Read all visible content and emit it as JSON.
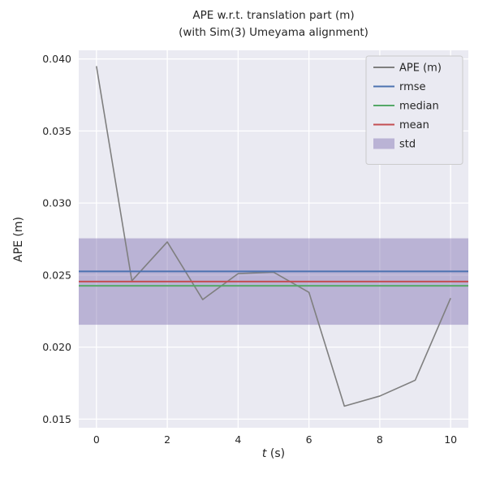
{
  "title": {
    "line1": "APE w.r.t. translation part (m)",
    "line2": "(with Sim(3) Umeyama alignment)"
  },
  "chart_data": {
    "type": "line",
    "title": "APE w.r.t. translation part (m)\n(with Sim(3) Umeyama alignment)",
    "xlabel": "t (s)",
    "ylabel": "APE (m)",
    "xlim": [
      -0.5,
      10.5
    ],
    "ylim": [
      0.0144,
      0.0406
    ],
    "xticks": [
      0,
      2,
      4,
      6,
      8,
      10
    ],
    "yticks": [
      0.015,
      0.02,
      0.025,
      0.03,
      0.035,
      0.04
    ],
    "grid": true,
    "background": "#EAEAF2",
    "grid_color": "#FFFFFF",
    "x": [
      0,
      1,
      2,
      3,
      4,
      5,
      6,
      7,
      8,
      9,
      10
    ],
    "series": [
      {
        "name": "APE (m)",
        "color": "#7F7F7F",
        "values": [
          0.0395,
          0.0246,
          0.0273,
          0.0233,
          0.0251,
          0.0252,
          0.0238,
          0.0159,
          0.0166,
          0.0177,
          0.0234
        ]
      }
    ],
    "stat_lines": [
      {
        "name": "rmse",
        "value": 0.02525,
        "color": "#4C72B0"
      },
      {
        "name": "median",
        "value": 0.02425,
        "color": "#55A868"
      },
      {
        "name": "mean",
        "value": 0.02455,
        "color": "#C44E52"
      }
    ],
    "std_band": {
      "name": "std",
      "low": 0.02155,
      "high": 0.02755,
      "color": "#8172B2",
      "opacity": 0.45
    },
    "legend": {
      "position": "upper right",
      "items": [
        {
          "label": "APE (m)",
          "type": "line",
          "color": "#7F7F7F"
        },
        {
          "label": "rmse",
          "type": "line",
          "color": "#4C72B0"
        },
        {
          "label": "median",
          "type": "line",
          "color": "#55A868"
        },
        {
          "label": "mean",
          "type": "line",
          "color": "#C44E52"
        },
        {
          "label": "std",
          "type": "patch",
          "color": "#8172B2"
        }
      ]
    }
  }
}
